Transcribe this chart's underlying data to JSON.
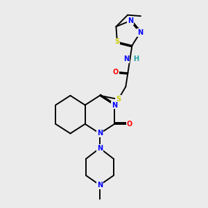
{
  "bg_color": "#ebebeb",
  "bond_color": "#000000",
  "atom_colors": {
    "N": "#0000ff",
    "O": "#ff0000",
    "S": "#cccc00",
    "H": "#20a0a0",
    "C": "#000000"
  },
  "font_size": 7.0,
  "lw": 1.4
}
